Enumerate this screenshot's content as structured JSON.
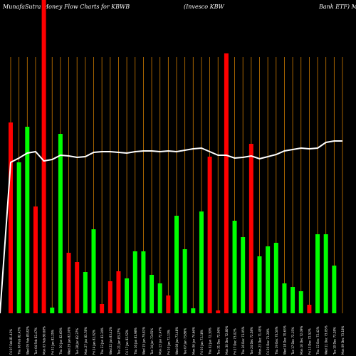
{
  "header": {
    "part1": "MunafaSutra  Money  Flow  Charts for KBWB",
    "part2": "(Invesco  KBW",
    "part3": "Bank ETF) Ma"
  },
  "chart_data": {
    "type": "bar",
    "title": "MunafaSutra  Money  Flow  Charts for KBWB (Invesco  KBW Bank ETF)",
    "colors": {
      "up": "#00ff00",
      "down": "#ff0000",
      "line": "#ffffff",
      "grid": "#cc7a00",
      "background": "#000000"
    },
    "categories": [
      "Fri 07 Feb 81.43%",
      "Thu 06 Feb 82.43%",
      "Wed 05 Feb 83.82%",
      "Tue 04 Feb 82.47%",
      "Mon 03 Feb 80.68%",
      "Fri 31 Jan 82.25%",
      "Thu 30 Jan 82.60%",
      "Wed 29 Jan 82.00%",
      "Tue 28 Jan 82.37%",
      "Mon 27 Jan 83.78%",
      "Fri 24 Jan 82.92%",
      "Thu 23 Jan 83.34%",
      "Wed 22 Jan 83.42%",
      "Tue 21 Jan 83.27%",
      "Fri 17 Jan 82.52%",
      "Thu 16 Jan 81.98%",
      "Wed 15 Jan 79.81%",
      "Tue 14 Jan 73.65%",
      "Mon 13 Jan 72.47%",
      "Fri 10 Jan 72.13%",
      "Wed 08 Jan 73.48%",
      "Tue 07 Jan 73.86%",
      "Mon 06 Jan 74.66%",
      "Fri 03 Jan 73.18%",
      "Thu 02 Jan 72.30%",
      "Tue 31 Dec 72.06%",
      "Mon 30 Dec 72.80%",
      "Fri 27 Dec 73.02%",
      "Thu 26 Dec 73.05%",
      "Tue 24 Dec 72.58%",
      "Mon 23 Dec 71.43%",
      "Fri 20 Dec 71.28%",
      "Thu 19 Dec 70.50%",
      "Wed 18 Dec 70.63%",
      "Tue 17 Dec 72.15%",
      "Mon 16 Dec 72.09%",
      "Fri 13 Dec 72.52%",
      "Thu 12 Dec 72.42%",
      "Wed 11 Dec 73.05%",
      "Tue 10 Dec 73.28%",
      "Mon 09 Dec 73.18%"
    ],
    "values": [
      268,
      212,
      262,
      150,
      440,
      8,
      252,
      85,
      72,
      58,
      118,
      13,
      45,
      59,
      49,
      87,
      87,
      54,
      42,
      25,
      137,
      90,
      7,
      143,
      220,
      4,
      365,
      130,
      107,
      238,
      80,
      94,
      99,
      42,
      37,
      31,
      12,
      111,
      111,
      67,
      0
    ],
    "directions": [
      "down",
      "up",
      "up",
      "down",
      "down",
      "up",
      "up",
      "down",
      "down",
      "up",
      "up",
      "down",
      "down",
      "down",
      "up",
      "up",
      "up",
      "up",
      "up",
      "down",
      "up",
      "up",
      "up",
      "up",
      "down",
      "down",
      "down",
      "up",
      "up",
      "down",
      "up",
      "up",
      "up",
      "up",
      "up",
      "up",
      "down",
      "up",
      "up",
      "up",
      "up"
    ],
    "line_values": [
      212,
      218,
      225,
      227,
      214,
      216,
      222,
      221,
      219,
      220,
      226,
      227,
      227,
      226,
      225,
      227,
      228,
      228,
      227,
      228,
      227,
      229,
      231,
      232,
      227,
      222,
      222,
      218,
      219,
      221,
      217,
      220,
      223,
      228,
      230,
      232,
      231,
      232,
      240,
      242,
      242
    ],
    "ylim": [
      0,
      440
    ],
    "grid": true
  }
}
